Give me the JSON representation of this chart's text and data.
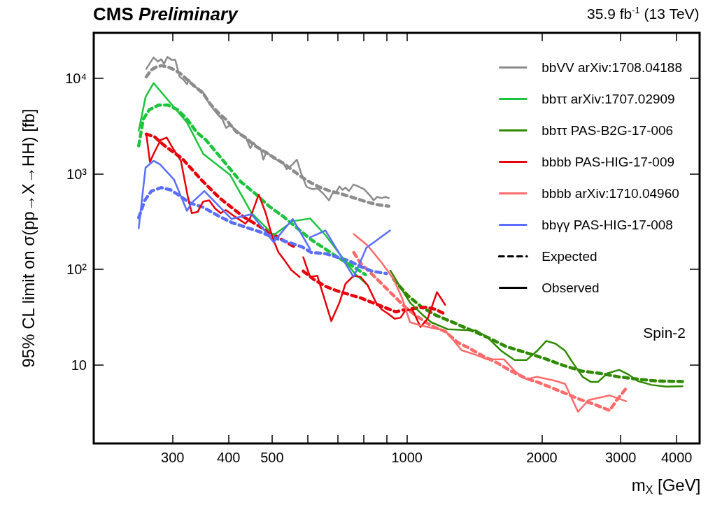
{
  "chart_data": {
    "type": "line",
    "title": "CMS Preliminary",
    "xlabel": "m$_{X}$ [GeV]",
    "ylabel": "95% CL limit on σ(pp→X→HH) [fb]",
    "annotations": [
      "35.9 fb$^{-1}$ (13 TeV)",
      "Spin-2"
    ],
    "log": "xy",
    "grid": false,
    "legend": "top right",
    "marker": "none",
    "xlim": [
      200,
      4500
    ],
    "ylim": [
      1.5,
      30000
    ],
    "xticks": [
      300,
      400,
      500,
      {
        "value": 600,
        "label": null
      },
      {
        "value": 700,
        "label": null
      },
      {
        "value": 800,
        "label": null
      },
      {
        "value": 900,
        "label": null
      },
      1000,
      2000,
      3000,
      4000
    ],
    "yticks": [
      10,
      {
        "value": 100,
        "label": "10²"
      },
      {
        "value": 1000,
        "label": "10³"
      },
      {
        "value": 10000,
        "label": "10⁴"
      }
    ],
    "series": [
      {
        "name": "bbVV arXiv:1708.04188",
        "color": "#8c8c8c",
        "line_style": "solid",
        "x": [
          262,
          272,
          278,
          283,
          287,
          292,
          298,
          304,
          311,
          317,
          323,
          326,
          333,
          339,
          347,
          351,
          360,
          369,
          378,
          387,
          395,
          403,
          411,
          426,
          436,
          447,
          455,
          463,
          472,
          478,
          486,
          504,
          517,
          530,
          539,
          556,
          568,
          580,
          597,
          616,
          631,
          650,
          670,
          682,
          695,
          707,
          718,
          729,
          742,
          760,
          779,
          803,
          828,
          843,
          858,
          879,
          895,
          911
        ],
        "values": [
          12600,
          16600,
          15000,
          15900,
          14200,
          16800,
          15700,
          15700,
          10400,
          9730,
          8690,
          9730,
          8310,
          7990,
          7550,
          7140,
          5710,
          4830,
          4200,
          3750,
          3030,
          3260,
          3000,
          2610,
          2470,
          1860,
          2120,
          1910,
          1810,
          1410,
          1710,
          1450,
          1380,
          1290,
          1120,
          1260,
          1410,
          1030,
          731,
          690,
          706,
          625,
          528,
          625,
          643,
          739,
          679,
          718,
          661,
          773,
          739,
          690,
          590,
          528,
          574,
          558,
          574,
          558
        ]
      },
      {
        "color": "#8c8c8c",
        "line_style": "dashed",
        "x": [
          262,
          269,
          276,
          283,
          293,
          304,
          315,
          327,
          339,
          351,
          364,
          378,
          396,
          416,
          436,
          458,
          481,
          504,
          530,
          556,
          583,
          612,
          642,
          674,
          707,
          742,
          779,
          817,
          858,
          911
        ],
        "values": [
          10400,
          12300,
          13200,
          13600,
          13200,
          12200,
          10900,
          9190,
          7990,
          6950,
          5400,
          4440,
          3650,
          2750,
          2400,
          1970,
          1710,
          1490,
          1290,
          1090,
          924,
          803,
          718,
          661,
          625,
          583,
          543,
          505,
          477,
          459
        ]
      },
      {
        "name": "bbττ arXiv:1707.02909",
        "color": "#1cc43c",
        "line_style": "solid",
        "x": [
          252,
          261,
          272,
          323,
          351,
          403,
          450,
          504,
          556,
          608,
          658,
          707,
          765,
          812
        ],
        "values": [
          2830,
          6390,
          8940,
          3450,
          1620,
          977,
          388,
          228,
          319,
          341,
          228,
          146,
          90.3,
          70.3
        ]
      },
      {
        "color": "#1cc43c",
        "line_style": "dashed",
        "x": [
          252,
          258,
          266,
          279,
          293,
          308,
          323,
          339,
          356,
          378,
          401,
          426,
          458,
          492,
          530,
          569,
          612,
          658,
          707,
          751,
          808
        ],
        "values": [
          1970,
          3750,
          4690,
          5250,
          5250,
          4690,
          3750,
          2750,
          2260,
          1620,
          1160,
          826,
          625,
          459,
          357,
          270,
          204,
          163,
          130,
          110,
          87.9
        ]
      },
      {
        "name": "bbττ PAS-B2G-17-006",
        "color": "#2f8a00",
        "line_style": "solid",
        "x": [
          918,
          957,
          1016,
          1080,
          1133,
          1233,
          1425,
          1513,
          1627,
          1739,
          1848,
          1950,
          2047,
          2148,
          2254,
          2365,
          2468,
          2574,
          2669,
          2800,
          2976,
          3122,
          3276,
          3521,
          3786,
          4120
        ],
        "values": [
          97.3,
          70.3,
          44.9,
          33.9,
          27.9,
          23.6,
          22.9,
          19.4,
          13.9,
          11.2,
          11.2,
          13.9,
          17.8,
          16.6,
          14.0,
          9.9,
          7.47,
          6.61,
          6.61,
          8.13,
          8.84,
          7.91,
          6.76,
          6.15,
          5.91,
          5.96
        ]
      },
      {
        "color": "#2f8a00",
        "line_style": "dashed",
        "x": [
          934,
          1004,
          1080,
          1161,
          1248,
          1374,
          1513,
          1667,
          1836,
          2022,
          2228,
          2454,
          2702,
          2976,
          3276,
          3608,
          4120
        ],
        "values": [
          78.6,
          53.2,
          40.1,
          33.0,
          28.7,
          23.6,
          19.4,
          15.5,
          13.5,
          11.7,
          9.9,
          8.6,
          8.13,
          7.47,
          7.07,
          6.76,
          6.69
        ]
      },
      {
        "name": "bbbb PAS-HIG-17-009",
        "color": "#e8000b",
        "line_style": "solid",
        "x": [
          262,
          267,
          272,
          282,
          291,
          298,
          313,
          324,
          331,
          341,
          351,
          362,
          373,
          384,
          394,
          413,
          436,
          447,
          467,
          484,
          501,
          517,
          532,
          552,
          576,
          580,
          587,
          608,
          631,
          678,
          707,
          729,
          760,
          788,
          817,
          853,
          879,
          911,
          939,
          968,
          991,
          1028,
          1072,
          1112,
          1167,
          1217
        ],
        "values": [
          2610,
          1330,
          1620,
          2260,
          2400,
          1970,
          1370,
          590,
          388,
          399,
          513,
          528,
          434,
          388,
          418,
          357,
          301,
          347,
          607,
          388,
          215,
          150,
          126,
          98.4,
          83.2,
          null,
          134,
          83.2,
          85.6,
          28.7,
          44.9,
          70.3,
          85.6,
          83.2,
          68.4,
          44.9,
          38.0,
          33.9,
          30.3,
          31.2,
          36.9,
          38.0,
          24.9,
          30.3,
          57.8,
          42.5
        ]
      },
      {
        "color": "#e8000b",
        "line_style": "dashed",
        "x": [
          262,
          273,
          286,
          300,
          315,
          331,
          347,
          364,
          382,
          406,
          431,
          458,
          486,
          517,
          549,
          569,
          578,
          587,
          619,
          658,
          699,
          742,
          788,
          837,
          890,
          945,
          991,
          1041,
          1105,
          1160,
          1217
        ],
        "values": [
          2610,
          2460,
          2020,
          1710,
          1450,
          1120,
          874,
          698,
          558,
          446,
          357,
          301,
          255,
          215,
          182,
          167,
          null,
          95.7,
          78.6,
          66.4,
          59.4,
          54.6,
          50.2,
          44.9,
          40.1,
          35.9,
          38.0,
          39.0,
          40.1,
          38.0,
          33.9
        ]
      },
      {
        "name": "bbbb arXiv:1710.04960",
        "color": "#ff6b6b",
        "line_style": "solid",
        "x": [
          761,
          818,
          880,
          934,
          975,
          1016,
          1080,
          1147,
          1218,
          1325,
          1425,
          1513,
          1647,
          1750,
          1848,
          1950,
          2122,
          2254,
          2409,
          2543,
          2835,
          3085
        ],
        "values": [
          234,
          177,
          116,
          78.6,
          50.2,
          27.9,
          25.6,
          24.2,
          22.9,
          14.2,
          12.7,
          11.4,
          11.4,
          8.37,
          7.07,
          7.47,
          6.88,
          6.32,
          3.22,
          4.27,
          4.78,
          4.15
        ]
      },
      {
        "color": "#ff6b6b",
        "line_style": "dashed",
        "x": [
          761,
          788,
          838,
          890,
          945,
          992,
          1054,
          1133,
          1218,
          1294,
          1374,
          1477,
          1589,
          1708,
          1836,
          1973,
          2122,
          2281,
          2454,
          2636,
          2835,
          2940,
          3085
        ],
        "values": [
          150,
          116,
          88.0,
          66.4,
          50.2,
          40.1,
          32.1,
          25.6,
          22.3,
          17.3,
          15.0,
          12.4,
          10.5,
          8.6,
          7.27,
          6.49,
          5.66,
          4.92,
          4.27,
          3.81,
          3.32,
          4.27,
          5.66
        ]
      },
      {
        "name": "bbγγ PAS-HIG-17-008",
        "color": "#5a6eff",
        "line_style": "solid",
        "x": [
          252,
          261,
          272,
          281,
          302,
          323,
          331,
          353,
          406,
          450,
          504,
          556,
          608
        ],
        "values": [
          269,
          1160,
          1370,
          1260,
          874,
          410,
          499,
          661,
          337,
          378,
          193,
          337,
          163
        ]
      },
      {
        "color": "#5a6eff",
        "line_style": "solid",
        "x": [
          608,
          658,
          760,
          779,
          812,
          917
        ],
        "values": [
          216,
          255,
          83.2,
          107,
          168,
          255
        ]
      },
      {
        "color": "#5a6eff",
        "line_style": "dashed",
        "x": [
          252,
          260,
          269,
          283,
          297,
          311,
          327,
          351,
          378,
          406,
          436,
          469,
          504,
          542,
          583,
          612,
          658,
          699,
          742,
          788,
          837,
          900
        ],
        "values": [
          347,
          528,
          661,
          718,
          679,
          590,
          499,
          446,
          367,
          310,
          277,
          248,
          215,
          193,
          172,
          150,
          146,
          134,
          123,
          107,
          95.5,
          90.3
        ]
      },
      {
        "name": "Expected",
        "color": "#000000",
        "line_style": "dashed"
      },
      {
        "name": "Observed",
        "color": "#000000",
        "line_style": "solid"
      }
    ]
  }
}
